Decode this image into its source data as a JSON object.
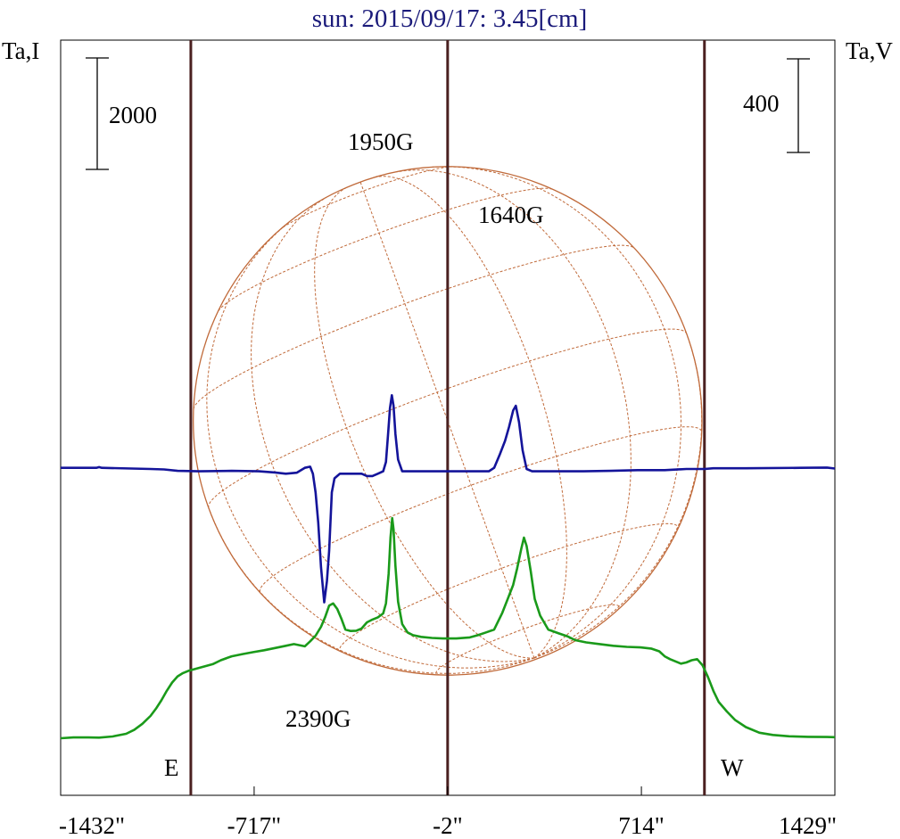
{
  "title": "sun: 2015/09/17: 3.45[cm]",
  "left_axis_label": "Ta,I",
  "right_axis_label": "Ta,V",
  "left_scale_bar_label": "2000",
  "right_scale_bar_label": "400",
  "limb_labels": {
    "east": "E",
    "west": "W"
  },
  "colors": {
    "intensity": "#1a9a1a",
    "polarization": "#14149a",
    "disk": "#c06a3a",
    "limb_lines": "#4a2020",
    "title": "#1a1a7a"
  },
  "chart_data": {
    "type": "line",
    "title": "sun: 2015/09/17: 3.45[cm]",
    "xlim": [
      -1432,
      1429
    ],
    "x_ticks": [
      -1432,
      -717,
      -2,
      714,
      1429
    ],
    "x_tick_labels": [
      "-1432\"",
      "-717\"",
      "-2\"",
      "714\"",
      "1429\""
    ],
    "vertical_lines_x": [
      -951,
      -2,
      947
    ],
    "disk_center_x": -2,
    "disk_radius_arcsec": 940,
    "annotations": [
      {
        "text": "1950G",
        "x": -220
      },
      {
        "text": "1640G",
        "x": 260
      },
      {
        "text": "2390G",
        "x": -450
      }
    ],
    "intensity_scale_bar": 2000,
    "polarization_scale_bar": 400,
    "series": [
      {
        "name": "Ta,I",
        "points": [
          [
            -1432,
            0
          ],
          [
            -1385,
            15
          ],
          [
            -1330,
            15
          ],
          [
            -1290,
            12
          ],
          [
            -1240,
            32
          ],
          [
            -1190,
            80
          ],
          [
            -1160,
            150
          ],
          [
            -1130,
            260
          ],
          [
            -1100,
            400
          ],
          [
            -1080,
            530
          ],
          [
            -1060,
            680
          ],
          [
            -1040,
            850
          ],
          [
            -1020,
            1000
          ],
          [
            -1000,
            1110
          ],
          [
            -980,
            1170
          ],
          [
            -960,
            1210
          ],
          [
            -930,
            1250
          ],
          [
            -900,
            1290
          ],
          [
            -870,
            1330
          ],
          [
            -840,
            1400
          ],
          [
            -800,
            1470
          ],
          [
            -760,
            1510
          ],
          [
            -720,
            1545
          ],
          [
            -680,
            1580
          ],
          [
            -640,
            1620
          ],
          [
            -600,
            1660
          ],
          [
            -570,
            1690
          ],
          [
            -550,
            1670
          ],
          [
            -530,
            1650
          ],
          [
            -510,
            1740
          ],
          [
            -490,
            1840
          ],
          [
            -470,
            2000
          ],
          [
            -455,
            2170
          ],
          [
            -440,
            2380
          ],
          [
            -425,
            2420
          ],
          [
            -410,
            2320
          ],
          [
            -395,
            2150
          ],
          [
            -380,
            1950
          ],
          [
            -360,
            1925
          ],
          [
            -340,
            1930
          ],
          [
            -320,
            1970
          ],
          [
            -300,
            2080
          ],
          [
            -280,
            2130
          ],
          [
            -260,
            2170
          ],
          [
            -240,
            2240
          ],
          [
            -230,
            2420
          ],
          [
            -220,
            2950
          ],
          [
            -213,
            3600
          ],
          [
            -207,
            3950
          ],
          [
            -202,
            3750
          ],
          [
            -195,
            3100
          ],
          [
            -185,
            2450
          ],
          [
            -170,
            2050
          ],
          [
            -150,
            1900
          ],
          [
            -130,
            1850
          ],
          [
            -100,
            1820
          ],
          [
            -60,
            1800
          ],
          [
            -20,
            1790
          ],
          [
            30,
            1790
          ],
          [
            80,
            1810
          ],
          [
            110,
            1850
          ],
          [
            140,
            1900
          ],
          [
            170,
            1950
          ],
          [
            200,
            2250
          ],
          [
            220,
            2500
          ],
          [
            240,
            2750
          ],
          [
            255,
            3050
          ],
          [
            270,
            3400
          ],
          [
            280,
            3600
          ],
          [
            290,
            3450
          ],
          [
            305,
            3000
          ],
          [
            320,
            2500
          ],
          [
            340,
            2200
          ],
          [
            370,
            1950
          ],
          [
            410,
            1880
          ],
          [
            440,
            1830
          ],
          [
            470,
            1760
          ],
          [
            510,
            1720
          ],
          [
            560,
            1690
          ],
          [
            610,
            1660
          ],
          [
            660,
            1640
          ],
          [
            710,
            1630
          ],
          [
            750,
            1610
          ],
          [
            780,
            1560
          ],
          [
            800,
            1470
          ],
          [
            820,
            1420
          ],
          [
            840,
            1380
          ],
          [
            860,
            1340
          ],
          [
            880,
            1360
          ],
          [
            900,
            1400
          ],
          [
            920,
            1420
          ],
          [
            940,
            1310
          ],
          [
            960,
            1100
          ],
          [
            980,
            850
          ],
          [
            1000,
            650
          ],
          [
            1030,
            480
          ],
          [
            1060,
            330
          ],
          [
            1100,
            200
          ],
          [
            1150,
            100
          ],
          [
            1200,
            60
          ],
          [
            1260,
            35
          ],
          [
            1330,
            25
          ],
          [
            1400,
            22
          ],
          [
            1429,
            20
          ]
        ]
      },
      {
        "name": "Ta,V",
        "points": [
          [
            -1432,
            5
          ],
          [
            -1300,
            5
          ],
          [
            -1290,
            8
          ],
          [
            -1280,
            5
          ],
          [
            -1100,
            0
          ],
          [
            -1050,
            -2
          ],
          [
            -1000,
            -8
          ],
          [
            -920,
            -10
          ],
          [
            -800,
            -8
          ],
          [
            -700,
            -10
          ],
          [
            -640,
            -15
          ],
          [
            -600,
            -20
          ],
          [
            -560,
            -16
          ],
          [
            -530,
            5
          ],
          [
            -510,
            10
          ],
          [
            -500,
            -20
          ],
          [
            -490,
            -100
          ],
          [
            -480,
            -230
          ],
          [
            -470,
            -420
          ],
          [
            -458,
            -570
          ],
          [
            -448,
            -480
          ],
          [
            -440,
            -350
          ],
          [
            -430,
            -100
          ],
          [
            -420,
            -40
          ],
          [
            -400,
            -20
          ],
          [
            -360,
            -20
          ],
          [
            -320,
            -20
          ],
          [
            -300,
            -30
          ],
          [
            -280,
            -30
          ],
          [
            -260,
            -20
          ],
          [
            -240,
            -10
          ],
          [
            -230,
            30
          ],
          [
            -222,
            150
          ],
          [
            -215,
            260
          ],
          [
            -208,
            315
          ],
          [
            -202,
            270
          ],
          [
            -195,
            150
          ],
          [
            -185,
            40
          ],
          [
            -170,
            -10
          ],
          [
            -130,
            -10
          ],
          [
            -50,
            -10
          ],
          [
            50,
            -10
          ],
          [
            150,
            -10
          ],
          [
            170,
            5
          ],
          [
            190,
            60
          ],
          [
            210,
            120
          ],
          [
            225,
            180
          ],
          [
            240,
            250
          ],
          [
            250,
            270
          ],
          [
            262,
            200
          ],
          [
            275,
            80
          ],
          [
            290,
            0
          ],
          [
            310,
            -10
          ],
          [
            400,
            -10
          ],
          [
            500,
            -10
          ],
          [
            600,
            -8
          ],
          [
            700,
            -5
          ],
          [
            800,
            -5
          ],
          [
            880,
            0
          ],
          [
            947,
            0
          ],
          [
            980,
            3
          ],
          [
            1100,
            3
          ],
          [
            1300,
            5
          ],
          [
            1400,
            6
          ],
          [
            1429,
            2
          ]
        ]
      }
    ]
  }
}
